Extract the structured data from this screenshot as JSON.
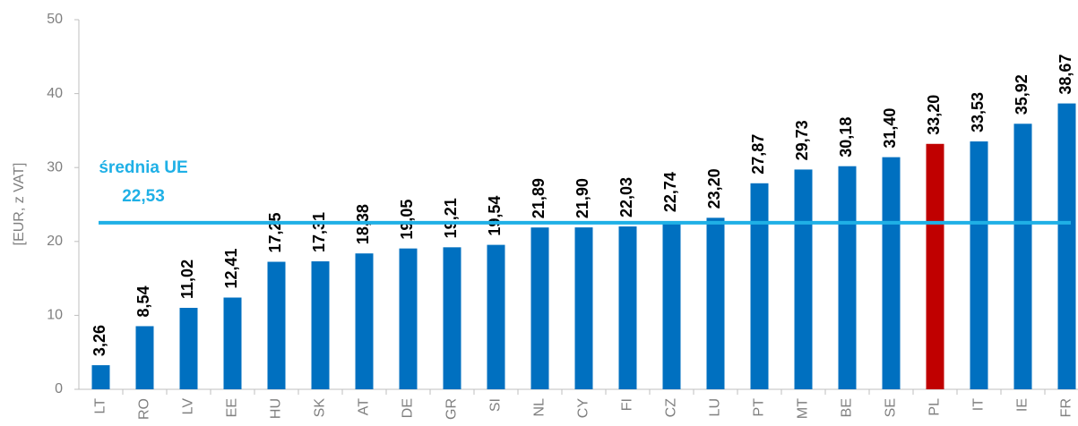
{
  "chart_data": {
    "type": "bar",
    "y_label": "[EUR, z VAT]",
    "categories": [
      "LT",
      "RO",
      "LV",
      "EE",
      "HU",
      "SK",
      "AT",
      "DE",
      "GR",
      "SI",
      "NL",
      "CY",
      "FI",
      "CZ",
      "LU",
      "PT",
      "MT",
      "BE",
      "SE",
      "PL",
      "IT",
      "IE",
      "FR"
    ],
    "values": [
      3.26,
      8.54,
      11.02,
      12.41,
      17.25,
      17.31,
      18.38,
      19.05,
      19.21,
      19.54,
      21.89,
      21.9,
      22.03,
      22.74,
      23.2,
      27.87,
      29.73,
      30.18,
      31.4,
      33.2,
      33.53,
      35.92,
      38.67
    ],
    "value_labels": [
      "3,26",
      "8,54",
      "11,02",
      "12,41",
      "17,25",
      "17,31",
      "18,38",
      "19,05",
      "19,21",
      "19,54",
      "21,89",
      "21,90",
      "22,03",
      "22,74",
      "23,20",
      "27,87",
      "29,73",
      "30,18",
      "31,40",
      "33,20",
      "33,53",
      "35,92",
      "38,67"
    ],
    "colors": [
      "#0070c0",
      "#0070c0",
      "#0070c0",
      "#0070c0",
      "#0070c0",
      "#0070c0",
      "#0070c0",
      "#0070c0",
      "#0070c0",
      "#0070c0",
      "#0070c0",
      "#0070c0",
      "#0070c0",
      "#0070c0",
      "#0070c0",
      "#0070c0",
      "#0070c0",
      "#0070c0",
      "#0070c0",
      "#c00000",
      "#0070c0",
      "#0070c0",
      "#0070c0"
    ],
    "average": {
      "label": "średnia UE",
      "value": 22.53,
      "value_label": "22,53",
      "color": "#1fb0e6"
    },
    "ylim": [
      0,
      50
    ],
    "yticks": [
      0,
      10,
      20,
      30,
      40,
      50
    ],
    "grid": false
  }
}
